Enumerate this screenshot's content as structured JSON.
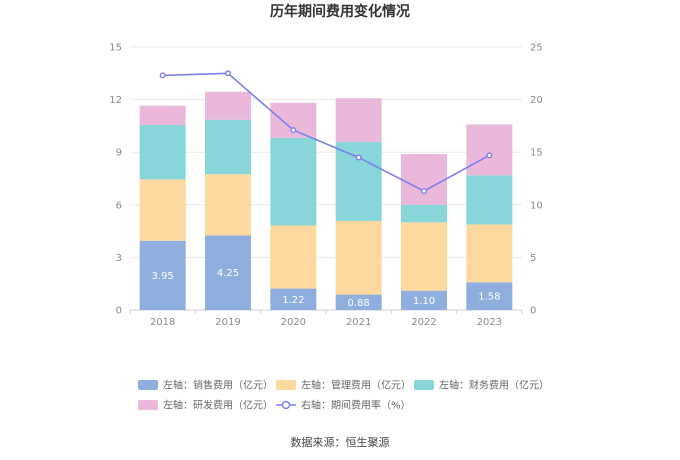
{
  "chart_data": {
    "type": "bar",
    "stacked": true,
    "title": "历年期间费用变化情况",
    "categories": [
      "2018",
      "2019",
      "2020",
      "2021",
      "2022",
      "2023"
    ],
    "series": [
      {
        "name": "左轴：销售费用（亿元）",
        "axis": "left",
        "color": "#8eaedd",
        "values": [
          3.95,
          4.25,
          1.22,
          0.88,
          1.1,
          1.58
        ],
        "labels": [
          "3.95",
          "4.25",
          "1.22",
          "0.88",
          "1.10",
          "1.58"
        ]
      },
      {
        "name": "左轴：管理费用（亿元）",
        "axis": "left",
        "color": "#fdd9a0",
        "values": [
          3.5,
          3.5,
          3.6,
          4.2,
          3.9,
          3.3
        ]
      },
      {
        "name": "左轴：财务费用（亿元）",
        "axis": "left",
        "color": "#88d6d9",
        "values": [
          3.1,
          3.1,
          5.0,
          4.5,
          1.0,
          2.8
        ]
      },
      {
        "name": "左轴：研发费用（亿元）",
        "axis": "left",
        "color": "#eab8da",
        "values": [
          1.1,
          1.6,
          2.0,
          2.5,
          2.9,
          2.9
        ]
      },
      {
        "name": "右轴：期间费用率（%）",
        "axis": "right",
        "type": "line",
        "color": "#7b7ff0",
        "values": [
          22.3,
          22.5,
          17.1,
          14.5,
          11.3,
          14.7
        ]
      }
    ],
    "y_left": {
      "ylim": [
        0,
        15
      ],
      "ticks": [
        "0",
        "3",
        "6",
        "9",
        "12",
        "15"
      ]
    },
    "y_right": {
      "ylim": [
        0,
        25
      ],
      "ticks": [
        "0",
        "5",
        "10",
        "15",
        "20",
        "25"
      ]
    },
    "grid": true,
    "legend_position": "bottom"
  },
  "source": "数据来源：恒生聚源"
}
